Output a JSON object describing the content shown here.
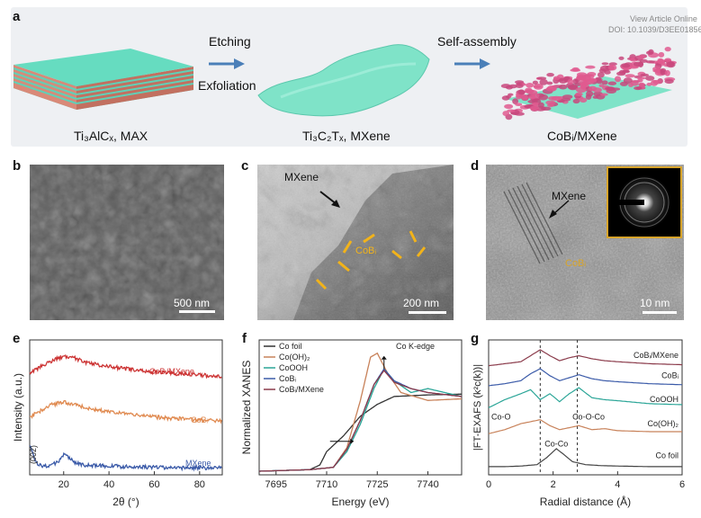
{
  "watermark": {
    "line1": "View Article Online",
    "line2": "DOI: 10.1039/D3EE01856C"
  },
  "panel_a": {
    "label": "a",
    "step1_top": "Etching",
    "step1_bottom": "Exfoliation",
    "step2": "Self-assembly",
    "max_caption": "Ti₃AlCₓ, MAX",
    "mxene_caption": "Ti₃C₂Tₓ, MXene",
    "cob_caption": "CoBᵢ/MXene"
  },
  "panel_b": {
    "label": "b",
    "scale": "500 nm"
  },
  "panel_c": {
    "label": "c",
    "scale": "200 nm",
    "mxene": "MXene",
    "cob": "CoBᵢ"
  },
  "panel_d": {
    "label": "d",
    "scale": "10 nm",
    "mxene": "MXene",
    "cob": "CoBᵢ"
  },
  "panel_e": {
    "label": "e"
  },
  "panel_f": {
    "label": "f"
  },
  "panel_g": {
    "label": "g"
  },
  "chart_data": [
    {
      "type": "line",
      "id": "e",
      "title": "",
      "xlabel": "2θ (°)",
      "ylabel": "Intensity (a.u.)",
      "xlim": [
        5,
        90
      ],
      "xticks": [
        20,
        40,
        60,
        80
      ],
      "annotation": "(002)",
      "series": [
        {
          "name": "CoBᵢ/MXene",
          "color": "#cc3333",
          "offset": 2.1,
          "x": [
            5,
            10,
            15,
            20,
            25,
            30,
            40,
            50,
            60,
            70,
            80,
            90
          ],
          "y": [
            0.2,
            0.35,
            0.5,
            0.6,
            0.55,
            0.45,
            0.35,
            0.28,
            0.22,
            0.18,
            0.15,
            0.12
          ]
        },
        {
          "name": "CoBᵢ",
          "color": "#e08a50",
          "offset": 1.05,
          "x": [
            5,
            10,
            15,
            20,
            25,
            30,
            40,
            50,
            60,
            70,
            80,
            90
          ],
          "y": [
            0.2,
            0.35,
            0.5,
            0.55,
            0.5,
            0.42,
            0.32,
            0.25,
            0.2,
            0.16,
            0.13,
            0.1
          ]
        },
        {
          "name": "MXene",
          "color": "#3a5aa8",
          "offset": 0.0,
          "x": [
            5,
            8,
            10,
            15,
            18,
            20,
            22,
            25,
            30,
            40,
            50,
            60,
            70,
            80,
            90
          ],
          "y": [
            0.6,
            0.15,
            0.08,
            0.1,
            0.22,
            0.35,
            0.3,
            0.15,
            0.1,
            0.08,
            0.06,
            0.05,
            0.04,
            0.04,
            0.03
          ]
        }
      ]
    },
    {
      "type": "line",
      "id": "f",
      "title": "Co K-edge",
      "xlabel": "Energy (eV)",
      "ylabel": "Normalized XANES",
      "xlim": [
        7690,
        7750
      ],
      "xticks": [
        7695,
        7710,
        7725,
        7740
      ],
      "series": [
        {
          "name": "Co foil",
          "color": "#333333",
          "x": [
            7690,
            7705,
            7708,
            7710,
            7715,
            7720,
            7725,
            7730,
            7740,
            7750
          ],
          "y": [
            0.0,
            0.02,
            0.08,
            0.25,
            0.45,
            0.7,
            0.85,
            0.95,
            0.97,
            0.98
          ]
        },
        {
          "name": "Co(OH)₂",
          "color": "#c8825a",
          "x": [
            7690,
            7705,
            7712,
            7716,
            7720,
            7723,
            7725,
            7728,
            7732,
            7740,
            7750
          ],
          "y": [
            0.0,
            0.02,
            0.05,
            0.3,
            0.9,
            1.45,
            1.5,
            1.25,
            1.0,
            0.9,
            0.92
          ]
        },
        {
          "name": "CoOOH",
          "color": "#2aa597",
          "x": [
            7690,
            7705,
            7712,
            7716,
            7720,
            7724,
            7727,
            7730,
            7735,
            7740,
            7750
          ],
          "y": [
            0.0,
            0.02,
            0.05,
            0.25,
            0.6,
            1.05,
            1.3,
            1.15,
            1.0,
            1.05,
            0.95
          ]
        },
        {
          "name": "CoBᵢ",
          "color": "#3a5aa8",
          "x": [
            7690,
            7705,
            7712,
            7716,
            7720,
            7724,
            7727,
            7730,
            7735,
            7740,
            7750
          ],
          "y": [
            0.0,
            0.02,
            0.05,
            0.28,
            0.65,
            1.1,
            1.3,
            1.15,
            1.05,
            1.0,
            0.95
          ]
        },
        {
          "name": "CoBᵢ/MXene",
          "color": "#8a3a4a",
          "x": [
            7690,
            7705,
            7712,
            7716,
            7720,
            7724,
            7727,
            7730,
            7735,
            7740,
            7750
          ],
          "y": [
            0.0,
            0.02,
            0.05,
            0.28,
            0.65,
            1.1,
            1.28,
            1.13,
            1.05,
            1.0,
            0.95
          ]
        }
      ]
    },
    {
      "type": "line",
      "id": "g",
      "title": "",
      "xlabel": "Radial distance (Å)",
      "ylabel": "|FT-EXAFS (k²c(k))|",
      "xlim": [
        0,
        6
      ],
      "xticks": [
        0,
        2,
        4,
        6
      ],
      "vlines": [
        1.6,
        2.75
      ],
      "annotations": [
        "Co-O",
        "Co-Co",
        "Co-O-Co"
      ],
      "series": [
        {
          "name": "CoBᵢ/MXene",
          "color": "#8a3a4a",
          "offset": 5,
          "x": [
            0,
            0.5,
            1,
            1.3,
            1.6,
            1.9,
            2.2,
            2.5,
            2.8,
            3.2,
            3.6,
            4,
            5,
            6
          ],
          "y": [
            0.1,
            0.2,
            0.3,
            0.6,
            0.9,
            0.6,
            0.35,
            0.5,
            0.6,
            0.45,
            0.35,
            0.3,
            0.2,
            0.15
          ]
        },
        {
          "name": "CoBᵢ",
          "color": "#3a5aa8",
          "offset": 4,
          "x": [
            0,
            0.5,
            1,
            1.3,
            1.6,
            1.9,
            2.2,
            2.5,
            2.8,
            3.2,
            3.6,
            4,
            5,
            6
          ],
          "y": [
            0.1,
            0.2,
            0.35,
            0.7,
            0.95,
            0.6,
            0.35,
            0.5,
            0.65,
            0.45,
            0.35,
            0.3,
            0.2,
            0.15
          ]
        },
        {
          "name": "CoOOH",
          "color": "#2aa597",
          "offset": 2.8,
          "x": [
            0,
            0.5,
            1,
            1.3,
            1.6,
            1.9,
            2.2,
            2.5,
            2.8,
            3.2,
            3.6,
            4,
            5,
            6
          ],
          "y": [
            0.2,
            0.6,
            0.9,
            1.1,
            0.6,
            0.9,
            0.5,
            0.9,
            1.2,
            0.7,
            0.6,
            0.55,
            0.4,
            0.35
          ]
        },
        {
          "name": "Co(OH)₂",
          "color": "#c8825a",
          "offset": 1.6,
          "x": [
            0,
            0.5,
            1,
            1.3,
            1.6,
            1.9,
            2.2,
            2.5,
            2.8,
            3.2,
            3.6,
            4,
            5,
            6
          ],
          "y": [
            0.1,
            0.3,
            0.6,
            0.7,
            0.8,
            0.5,
            0.3,
            0.4,
            0.5,
            0.3,
            0.35,
            0.25,
            0.2,
            0.2
          ]
        },
        {
          "name": "Co foil",
          "color": "#444444",
          "offset": 0,
          "x": [
            0,
            0.5,
            1,
            1.5,
            1.8,
            2.1,
            2.3,
            2.6,
            3,
            3.5,
            4,
            5,
            6
          ],
          "y": [
            0.05,
            0.05,
            0.08,
            0.15,
            0.5,
            0.95,
            0.7,
            0.3,
            0.15,
            0.1,
            0.08,
            0.05,
            0.05
          ]
        }
      ]
    }
  ]
}
